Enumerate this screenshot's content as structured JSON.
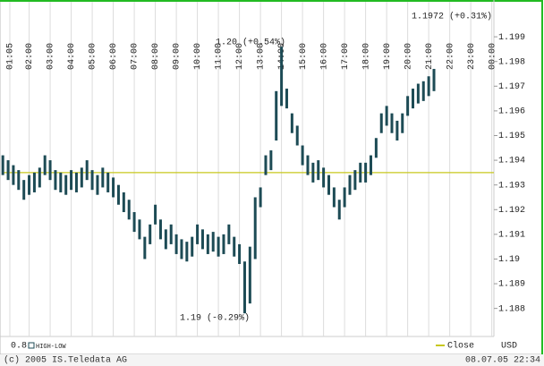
{
  "chart_data": {
    "type": "hilo",
    "series_name": "HIGH-LOW",
    "scale_label": "0.8",
    "unit": "USD",
    "color": "#1d4b55",
    "x": [
      0.75,
      1,
      1.25,
      1.5,
      1.75,
      2,
      2.25,
      2.5,
      2.75,
      3,
      3.25,
      3.5,
      3.75,
      4,
      4.25,
      4.5,
      4.75,
      5,
      5.25,
      5.5,
      5.75,
      6,
      6.25,
      6.5,
      6.75,
      7,
      7.25,
      7.5,
      7.75,
      8,
      8.25,
      8.5,
      8.75,
      9,
      9.25,
      9.5,
      9.75,
      10,
      10.25,
      10.5,
      10.75,
      11,
      11.25,
      11.5,
      11.75,
      12,
      12.25,
      12.5,
      12.75,
      13,
      13.25,
      13.5,
      13.75,
      14,
      14.25,
      14.5,
      14.75,
      15,
      15.25,
      15.5,
      15.75,
      16,
      16.25,
      16.5,
      16.75,
      17,
      17.25,
      17.5,
      17.75,
      18,
      18.25,
      18.5,
      18.75,
      19,
      19.25,
      19.5,
      19.75,
      20,
      20.25,
      20.5,
      20.75,
      21,
      21.25
    ],
    "high": [
      1.1942,
      1.194,
      1.1938,
      1.1936,
      1.1932,
      1.1934,
      1.1935,
      1.1937,
      1.1942,
      1.194,
      1.1936,
      1.1935,
      1.1934,
      1.1936,
      1.1935,
      1.1937,
      1.194,
      1.1936,
      1.1934,
      1.1937,
      1.1935,
      1.1933,
      1.193,
      1.1927,
      1.1924,
      1.1919,
      1.1916,
      1.1909,
      1.1914,
      1.1922,
      1.1916,
      1.1912,
      1.1914,
      1.191,
      1.1908,
      1.1907,
      1.1909,
      1.1914,
      1.1912,
      1.191,
      1.1911,
      1.1909,
      1.191,
      1.1914,
      1.1909,
      1.1906,
      1.1899,
      1.1905,
      1.1925,
      1.1929,
      1.1942,
      1.1944,
      1.1968,
      1.1986,
      1.1969,
      1.1959,
      1.1954,
      1.1946,
      1.1942,
      1.1939,
      1.194,
      1.1937,
      1.1934,
      1.1929,
      1.1924,
      1.1929,
      1.1934,
      1.1936,
      1.1939,
      1.1939,
      1.1942,
      1.1949,
      1.1959,
      1.1962,
      1.1959,
      1.1956,
      1.1959,
      1.1966,
      1.1969,
      1.1971,
      1.1972,
      1.1974,
      1.1977
    ],
    "low": [
      1.1934,
      1.1932,
      1.193,
      1.1928,
      1.1924,
      1.1926,
      1.1927,
      1.1929,
      1.1934,
      1.1932,
      1.1928,
      1.1927,
      1.1926,
      1.1928,
      1.1927,
      1.1929,
      1.1932,
      1.1928,
      1.1926,
      1.1929,
      1.1927,
      1.1925,
      1.1922,
      1.1919,
      1.1916,
      1.1911,
      1.1908,
      1.19,
      1.1906,
      1.1914,
      1.1908,
      1.1904,
      1.1906,
      1.1902,
      1.19,
      1.1899,
      1.1901,
      1.1906,
      1.1904,
      1.1902,
      1.1903,
      1.1901,
      1.1902,
      1.1906,
      1.1901,
      1.1898,
      1.1878,
      1.1882,
      1.19,
      1.1921,
      1.1934,
      1.1936,
      1.1948,
      1.1962,
      1.1961,
      1.1951,
      1.1946,
      1.1938,
      1.1934,
      1.1931,
      1.1932,
      1.1929,
      1.1926,
      1.1921,
      1.1916,
      1.1921,
      1.1926,
      1.1928,
      1.1931,
      1.1931,
      1.1934,
      1.1941,
      1.1951,
      1.1954,
      1.1951,
      1.1948,
      1.1951,
      1.1958,
      1.1961,
      1.1963,
      1.1964,
      1.1966,
      1.1968
    ],
    "xlim": [
      0.7,
      24.1
    ],
    "xticks": [
      {
        "value": 1.0833,
        "label": "01:05"
      },
      {
        "value": 2,
        "label": "02:00"
      },
      {
        "value": 3,
        "label": "03:00"
      },
      {
        "value": 4,
        "label": "04:00"
      },
      {
        "value": 5,
        "label": "05:00"
      },
      {
        "value": 6,
        "label": "06:00"
      },
      {
        "value": 7,
        "label": "07:00"
      },
      {
        "value": 8,
        "label": "08:00"
      },
      {
        "value": 9,
        "label": "09:00"
      },
      {
        "value": 10,
        "label": "10:00"
      },
      {
        "value": 11,
        "label": "11:00"
      },
      {
        "value": 12,
        "label": "12:00"
      },
      {
        "value": 13,
        "label": "13:00"
      },
      {
        "value": 14,
        "label": "14:00"
      },
      {
        "value": 15,
        "label": "15:00"
      },
      {
        "value": 16,
        "label": "16:00"
      },
      {
        "value": 17,
        "label": "17:00"
      },
      {
        "value": 18,
        "label": "18:00"
      },
      {
        "value": 19,
        "label": "19:00"
      },
      {
        "value": 20,
        "label": "20:00"
      },
      {
        "value": 21,
        "label": "21:00"
      },
      {
        "value": 22,
        "label": "22:00"
      },
      {
        "value": 23,
        "label": "23:00"
      },
      {
        "value": 24,
        "label": "00:00"
      }
    ],
    "ylim": [
      1.1869,
      1.2002
    ],
    "yticks": [
      1.199,
      1.198,
      1.197,
      1.196,
      1.195,
      1.194,
      1.193,
      1.192,
      1.191,
      1.19,
      1.189,
      1.188
    ],
    "grid": true,
    "reference_line": {
      "label": "Close",
      "value": 1.1935,
      "color": "#c8c81e"
    },
    "annotations": [
      "1.20 (+0.54%)",
      "1.19 (-0.29%)",
      "1.1972 (+0.31%)"
    ],
    "footer_left": "(c) 2005 IS.Teledata AG",
    "footer_right": "08.07.05 22:34"
  }
}
